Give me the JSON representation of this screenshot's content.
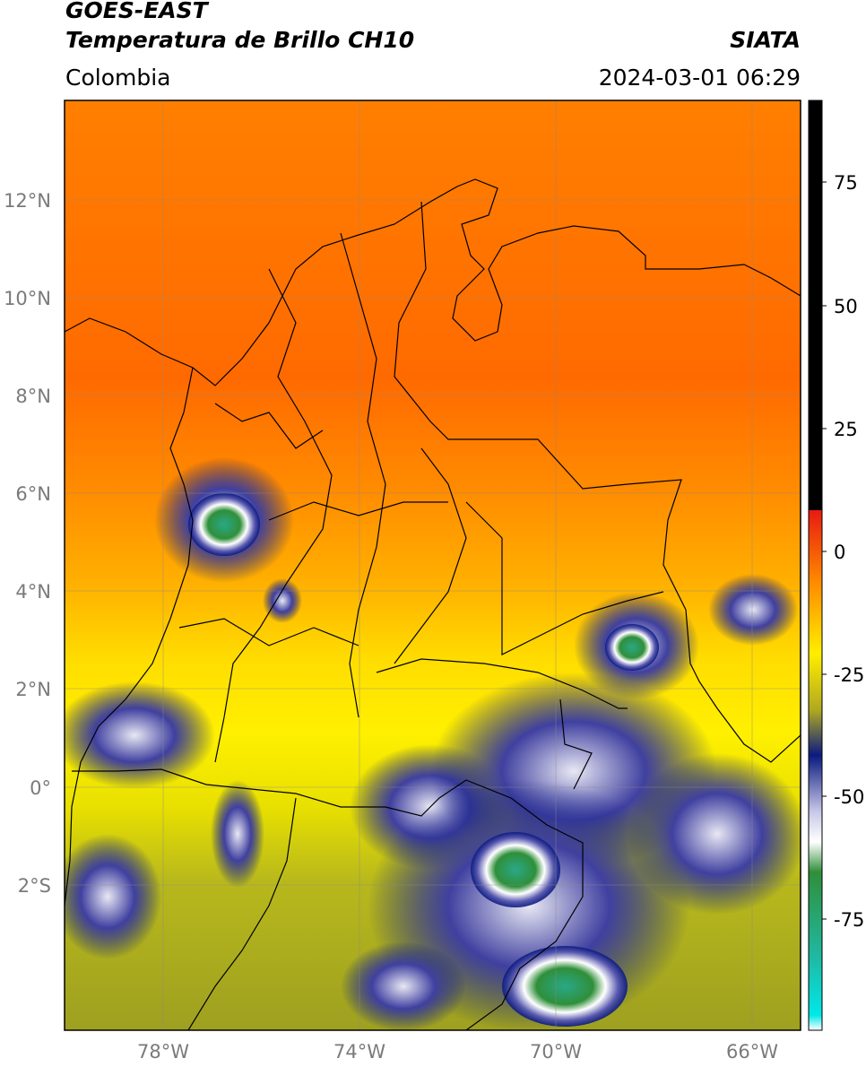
{
  "header": {
    "satellite": "GOES-EAST",
    "product": "Temperatura de Brillo CH10",
    "brand": "SIATA",
    "region": "Colombia",
    "timestamp": "2024-03-01 06:29"
  },
  "map": {
    "lon_range": [
      -80.0,
      -65.0
    ],
    "lat_range": [
      -5.0,
      14.0
    ],
    "lat_ticks": [
      "12°N",
      "10°N",
      "8°N",
      "6°N",
      "4°N",
      "2°N",
      "0°",
      "2°S"
    ],
    "lon_ticks": [
      "78°W",
      "74°W",
      "70°W",
      "66°W"
    ],
    "gridlines": true
  },
  "colorbar": {
    "ticks": [
      "75",
      "50",
      "25",
      "0",
      "-25",
      "-50",
      "-75"
    ],
    "range": [
      -95,
      90
    ],
    "colors": {
      "hot": "#000000",
      "red": "#e81a10",
      "orange": "#ff8a00",
      "yellow": "#ffee00",
      "olive": "#a8a820",
      "navy": "#0a1a80",
      "white": "#ffffff",
      "green": "#2f8f3a",
      "teal": "#20b8a0",
      "cyan": "#00e8e8"
    }
  }
}
